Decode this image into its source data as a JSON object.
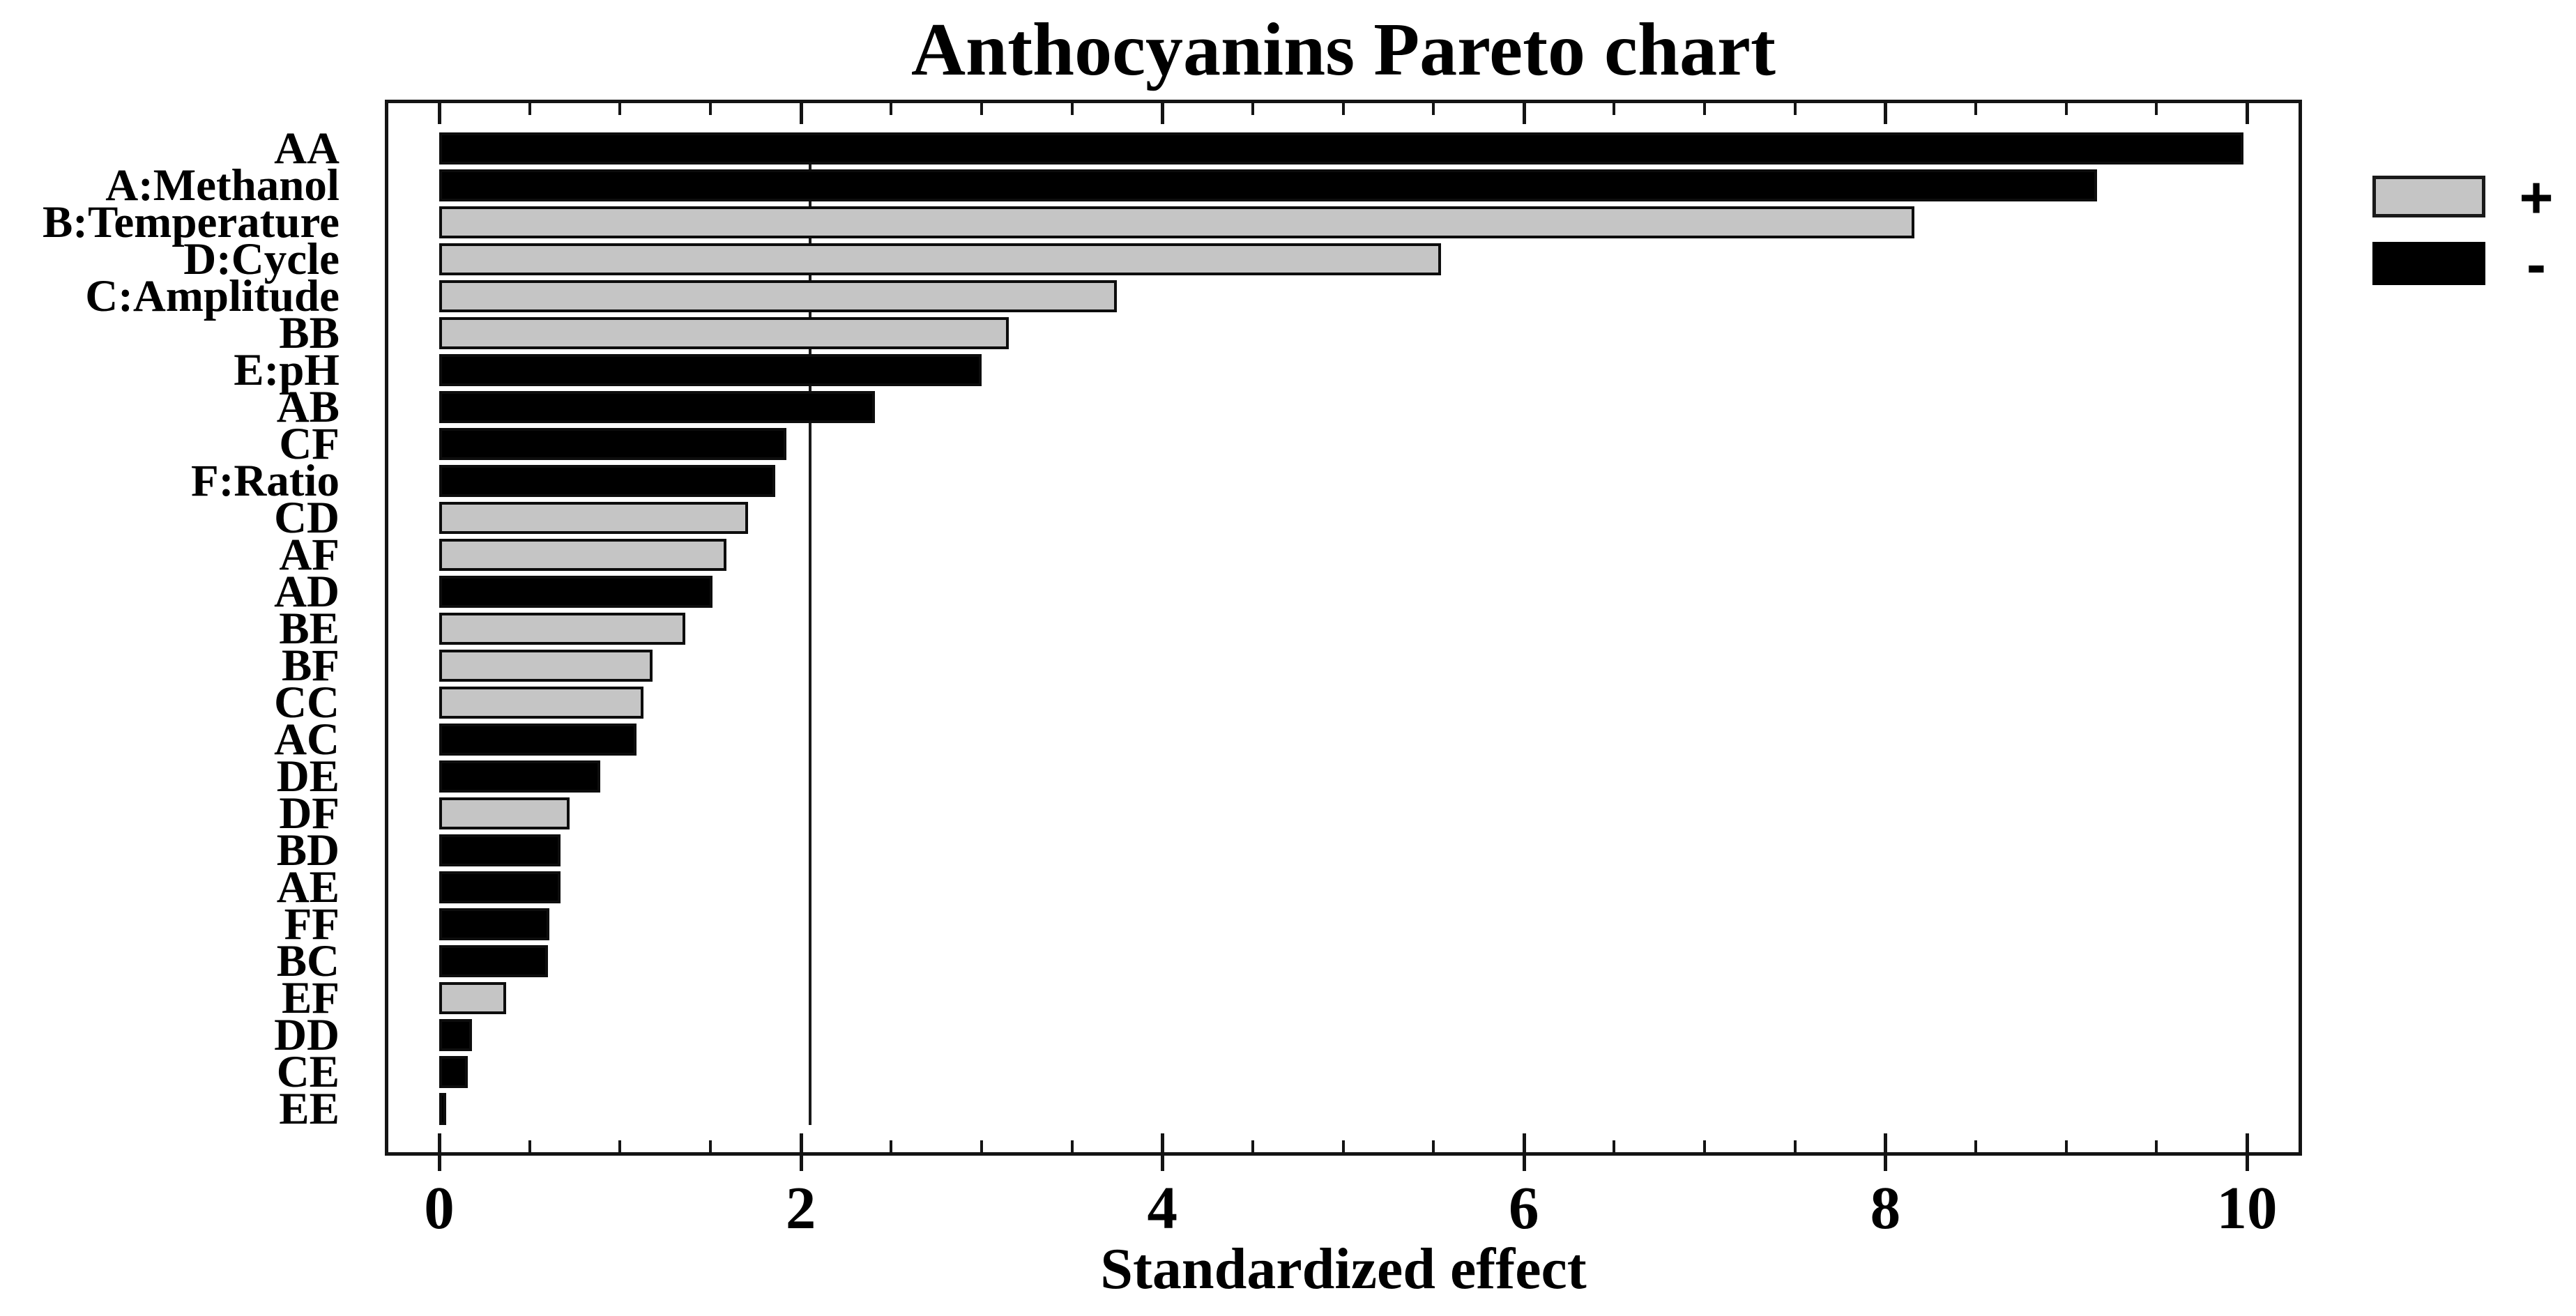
{
  "chart_data": {
    "type": "bar",
    "orientation": "horizontal",
    "title": "Anthocyanins Pareto chart",
    "xlabel": "Standardized effect",
    "x_ticks": [
      0,
      2,
      4,
      6,
      8,
      10
    ],
    "x_minor_tick_step": 0.5,
    "xlim": [
      -0.3,
      10.31
    ],
    "reference_line_x": 2.05,
    "grid": false,
    "categories": [
      "AA",
      "A:Methanol",
      "B:Temperature",
      "D:Cycle",
      "C:Amplitude",
      "BB",
      "E:pH",
      "AB",
      "CF",
      "F:Ratio",
      "CD",
      "AF",
      "AD",
      "BE",
      "BF",
      "CC",
      "AC",
      "DE",
      "DF",
      "BD",
      "AE",
      "FF",
      "BC",
      "EF",
      "DD",
      "CE",
      "EE"
    ],
    "values": [
      9.98,
      9.17,
      8.16,
      5.54,
      3.75,
      3.15,
      3.0,
      2.41,
      1.92,
      1.86,
      1.71,
      1.59,
      1.51,
      1.36,
      1.18,
      1.13,
      1.09,
      0.89,
      0.72,
      0.67,
      0.67,
      0.61,
      0.6,
      0.37,
      0.18,
      0.16,
      0.04
    ],
    "signs": [
      "-",
      "-",
      "+",
      "+",
      "+",
      "+",
      "-",
      "-",
      "-",
      "-",
      "+",
      "+",
      "-",
      "+",
      "+",
      "+",
      "-",
      "-",
      "+",
      "-",
      "-",
      "-",
      "-",
      "+",
      "-",
      "-",
      "-"
    ],
    "colors": {
      "plus": "#c5c5c5",
      "minus": "#000000"
    },
    "legend": {
      "position": "top-right",
      "entries": [
        {
          "label": "+",
          "sign": "plus"
        },
        {
          "label": "-",
          "sign": "minus"
        }
      ]
    }
  }
}
